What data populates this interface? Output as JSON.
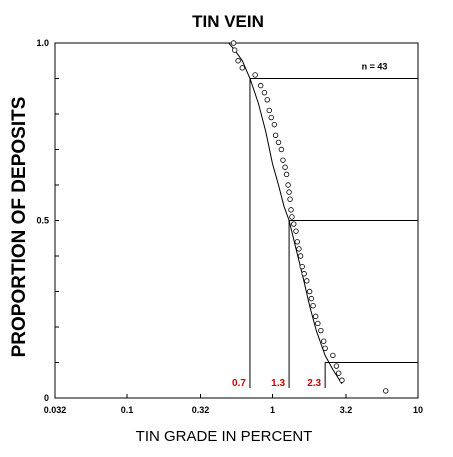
{
  "chart_data": {
    "type": "scatter",
    "title": "TIN VEIN",
    "xlabel": "TIN GRADE IN PERCENT",
    "ylabel": "PROPORTION OF DEPOSITS",
    "x_scale": "log",
    "xlim": [
      0.032,
      10
    ],
    "ylim": [
      0,
      1.0
    ],
    "x_ticks": [
      "0.032",
      "0.1",
      "0.32",
      "1",
      "3.2",
      "10"
    ],
    "y_ticks": [
      "0",
      "0.5",
      "1.0"
    ],
    "n_label": "n = 43",
    "percentile_lines": [
      {
        "proportion": 0.9,
        "grade": 0.7,
        "label": "0.7"
      },
      {
        "proportion": 0.5,
        "grade": 1.3,
        "label": "1.3"
      },
      {
        "proportion": 0.1,
        "grade": 2.3,
        "label": "2.3"
      }
    ],
    "label_color": "#cc0000",
    "observed_points": [
      {
        "x": 0.54,
        "y": 1.0
      },
      {
        "x": 0.55,
        "y": 0.98
      },
      {
        "x": 0.58,
        "y": 0.95
      },
      {
        "x": 0.62,
        "y": 0.93
      },
      {
        "x": 0.76,
        "y": 0.91
      },
      {
        "x": 0.83,
        "y": 0.88
      },
      {
        "x": 0.88,
        "y": 0.86
      },
      {
        "x": 0.92,
        "y": 0.84
      },
      {
        "x": 0.95,
        "y": 0.81
      },
      {
        "x": 0.98,
        "y": 0.79
      },
      {
        "x": 1.03,
        "y": 0.77
      },
      {
        "x": 1.05,
        "y": 0.74
      },
      {
        "x": 1.1,
        "y": 0.72
      },
      {
        "x": 1.15,
        "y": 0.7
      },
      {
        "x": 1.18,
        "y": 0.67
      },
      {
        "x": 1.22,
        "y": 0.65
      },
      {
        "x": 1.25,
        "y": 0.63
      },
      {
        "x": 1.28,
        "y": 0.6
      },
      {
        "x": 1.3,
        "y": 0.58
      },
      {
        "x": 1.32,
        "y": 0.56
      },
      {
        "x": 1.34,
        "y": 0.53
      },
      {
        "x": 1.36,
        "y": 0.51
      },
      {
        "x": 1.4,
        "y": 0.49
      },
      {
        "x": 1.45,
        "y": 0.47
      },
      {
        "x": 1.48,
        "y": 0.44
      },
      {
        "x": 1.52,
        "y": 0.42
      },
      {
        "x": 1.56,
        "y": 0.4
      },
      {
        "x": 1.6,
        "y": 0.37
      },
      {
        "x": 1.65,
        "y": 0.35
      },
      {
        "x": 1.72,
        "y": 0.33
      },
      {
        "x": 1.8,
        "y": 0.3
      },
      {
        "x": 1.85,
        "y": 0.28
      },
      {
        "x": 1.9,
        "y": 0.26
      },
      {
        "x": 1.98,
        "y": 0.23
      },
      {
        "x": 2.05,
        "y": 0.21
      },
      {
        "x": 2.15,
        "y": 0.19
      },
      {
        "x": 2.25,
        "y": 0.16
      },
      {
        "x": 2.3,
        "y": 0.14
      },
      {
        "x": 2.6,
        "y": 0.12
      },
      {
        "x": 2.75,
        "y": 0.09
      },
      {
        "x": 2.85,
        "y": 0.07
      },
      {
        "x": 3.0,
        "y": 0.05
      },
      {
        "x": 6.0,
        "y": 0.02
      }
    ],
    "fitted_curve": [
      {
        "x": 0.5,
        "y": 1.0
      },
      {
        "x": 0.55,
        "y": 0.98
      },
      {
        "x": 0.62,
        "y": 0.95
      },
      {
        "x": 0.7,
        "y": 0.9
      },
      {
        "x": 0.8,
        "y": 0.83
      },
      {
        "x": 0.9,
        "y": 0.75
      },
      {
        "x": 1.0,
        "y": 0.66
      },
      {
        "x": 1.1,
        "y": 0.6
      },
      {
        "x": 1.2,
        "y": 0.54
      },
      {
        "x": 1.3,
        "y": 0.5
      },
      {
        "x": 1.45,
        "y": 0.42
      },
      {
        "x": 1.6,
        "y": 0.35
      },
      {
        "x": 1.8,
        "y": 0.26
      },
      {
        "x": 2.0,
        "y": 0.19
      },
      {
        "x": 2.3,
        "y": 0.12
      },
      {
        "x": 2.6,
        "y": 0.08
      },
      {
        "x": 3.0,
        "y": 0.04
      }
    ]
  }
}
